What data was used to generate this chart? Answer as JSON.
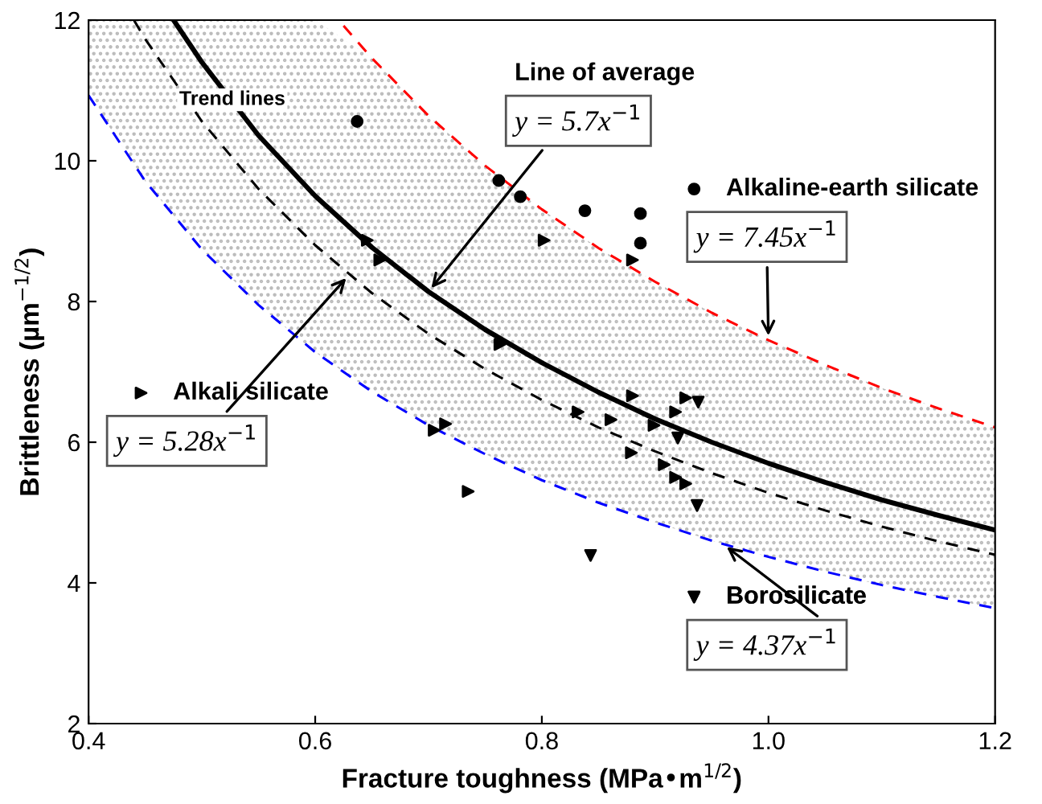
{
  "chart_data": {
    "type": "scatter",
    "xlabel": "Fracture toughness (MPa•m$^{1/2}$)",
    "ylabel": "Brittleness (µm$^{−1/2}$)",
    "xlim": [
      0.4,
      1.2
    ],
    "ylim": [
      2,
      12
    ],
    "xticks": [
      0.4,
      0.6,
      0.8,
      {
        "value": 1.0,
        "label": "1.0"
      },
      1.2
    ],
    "yticks": [
      2,
      4,
      6,
      8,
      10,
      12
    ],
    "grid": false,
    "legend": "right",
    "series": [
      {
        "name": "Alkaline-earth silicate",
        "marker": "circle",
        "color": "#000000",
        "x": [
          0.637,
          0.762,
          0.781,
          0.838,
          0.887,
          0.887
        ],
        "values": [
          10.56,
          9.72,
          9.49,
          9.29,
          9.25,
          8.83
        ]
      },
      {
        "name": "Alkali silicate",
        "marker": "triangle-right",
        "color": "#000000",
        "x": [
          0.646,
          0.657,
          0.802,
          0.88,
          0.763,
          0.832,
          0.705,
          0.715,
          0.735,
          0.88,
          0.927,
          0.918,
          0.861,
          0.899,
          0.879,
          0.908,
          0.918,
          0.927
        ],
        "values": [
          8.87,
          8.59,
          8.87,
          8.59,
          7.39,
          6.43,
          6.17,
          6.26,
          5.3,
          6.66,
          6.63,
          6.43,
          6.32,
          6.24,
          5.85,
          5.68,
          5.5,
          5.41
        ]
      },
      {
        "name": "Borosilicate",
        "marker": "triangle-down",
        "color": "#000000",
        "x": [
          0.938,
          0.92,
          0.937,
          0.843
        ],
        "values": [
          6.57,
          6.06,
          5.1,
          4.39
        ]
      },
      {
        "type": "line",
        "color": "#ff0000",
        "line_style": "dashed",
        "x": [
          0.625,
          0.65,
          0.7,
          0.75,
          0.8,
          0.85,
          0.9,
          0.95,
          1.0,
          1.05,
          1.1,
          1.15,
          1.2
        ],
        "values": [
          11.92,
          11.46,
          10.64,
          9.93,
          9.31,
          8.76,
          8.28,
          7.84,
          7.45,
          7.1,
          6.77,
          6.48,
          6.21
        ]
      },
      {
        "type": "line",
        "color": "#000000",
        "line_style": "solid",
        "x": [
          0.475,
          0.5,
          0.55,
          0.6,
          0.65,
          0.7,
          0.75,
          0.8,
          0.85,
          0.9,
          0.95,
          1.0,
          1.05,
          1.1,
          1.15,
          1.2
        ],
        "values": [
          12.0,
          11.4,
          10.36,
          9.5,
          8.77,
          8.14,
          7.6,
          7.13,
          6.71,
          6.33,
          6.0,
          5.7,
          5.43,
          5.18,
          4.96,
          4.75
        ]
      },
      {
        "type": "line",
        "color": "#000000",
        "line_style": "dashed",
        "x": [
          0.44,
          0.45,
          0.5,
          0.55,
          0.6,
          0.65,
          0.7,
          0.75,
          0.8,
          0.85,
          0.9,
          0.95,
          1.0,
          1.05,
          1.1,
          1.15,
          1.2
        ],
        "values": [
          12.0,
          11.73,
          10.56,
          9.6,
          8.8,
          8.12,
          7.54,
          7.04,
          6.6,
          6.21,
          5.87,
          5.56,
          5.28,
          5.03,
          4.8,
          4.59,
          4.4
        ]
      },
      {
        "type": "line",
        "color": "#0000ff",
        "line_style": "dashed",
        "x": [
          0.4,
          0.45,
          0.5,
          0.55,
          0.6,
          0.65,
          0.7,
          0.75,
          0.8,
          0.85,
          0.9,
          0.95,
          1.0,
          1.05,
          1.1,
          1.15,
          1.2
        ],
        "values": [
          10.93,
          9.71,
          8.74,
          7.95,
          7.28,
          6.72,
          6.24,
          5.83,
          5.46,
          5.14,
          4.86,
          4.6,
          4.37,
          4.16,
          3.97,
          3.8,
          3.64
        ],
        "lower": [
          10.93,
          9.71,
          8.74,
          7.95,
          7.28,
          6.72,
          6.24,
          5.83,
          5.46,
          5.14,
          4.86,
          4.6,
          4.37,
          4.16,
          3.97,
          3.8,
          3.64
        ],
        "upper": [
          12,
          12,
          12,
          12,
          12,
          11.46,
          10.64,
          9.93,
          9.31,
          8.76,
          8.28,
          7.84,
          7.45,
          7.1,
          6.77,
          6.48,
          6.21
        ]
      }
    ],
    "annotations": [
      "Trend lines",
      "Line of average",
      {
        "text": "y = 5.7x$^{−1}$",
        "x": 0.7,
        "y": 8.14
      },
      {
        "text": "y = 7.45x$^{−1}$",
        "x": 1.0,
        "y": 7.45
      },
      {
        "text": "y = 5.28x$^{−1}$",
        "x": 0.63,
        "y": 8.38
      },
      {
        "text": "y = 4.37x$^{−1}$",
        "x": 0.96,
        "y": 4.55
      }
    ]
  }
}
